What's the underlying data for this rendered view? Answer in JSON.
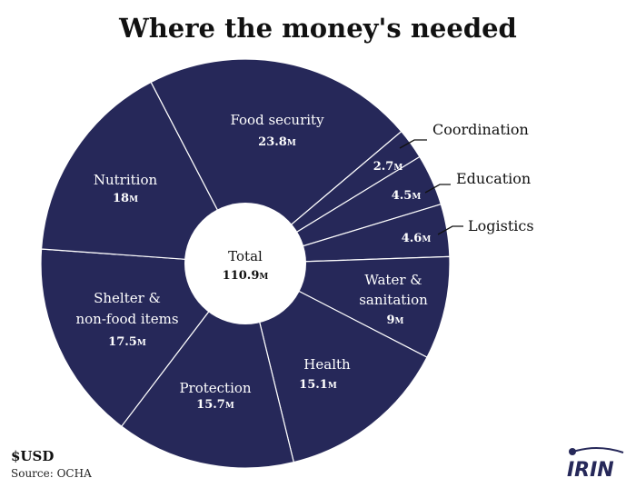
{
  "chart_data": {
    "type": "pie",
    "title": "Where the money's needed",
    "total_label": "Total",
    "total": 110.9,
    "unit_suffix": "M",
    "unit_note": "$USD",
    "source": "Source: OCHA",
    "slices": [
      {
        "label": "Food security",
        "value": 23.8
      },
      {
        "label": "Coordination",
        "value": 2.7
      },
      {
        "label": "Education",
        "value": 4.5
      },
      {
        "label": "Logistics",
        "value": 4.6
      },
      {
        "label": "Water & sanitation",
        "value": 9
      },
      {
        "label": "Health",
        "value": 15.1
      },
      {
        "label": "Protection",
        "value": 15.7
      },
      {
        "label": "Shelter & non-food items",
        "value": 17.5
      },
      {
        "label": "Nutrition",
        "value": 18
      }
    ]
  },
  "colors": {
    "slice_fill": "#262859",
    "slice_divider": "#ffffff",
    "center_fill": "#ffffff"
  },
  "logo": {
    "text": "IRIN"
  }
}
